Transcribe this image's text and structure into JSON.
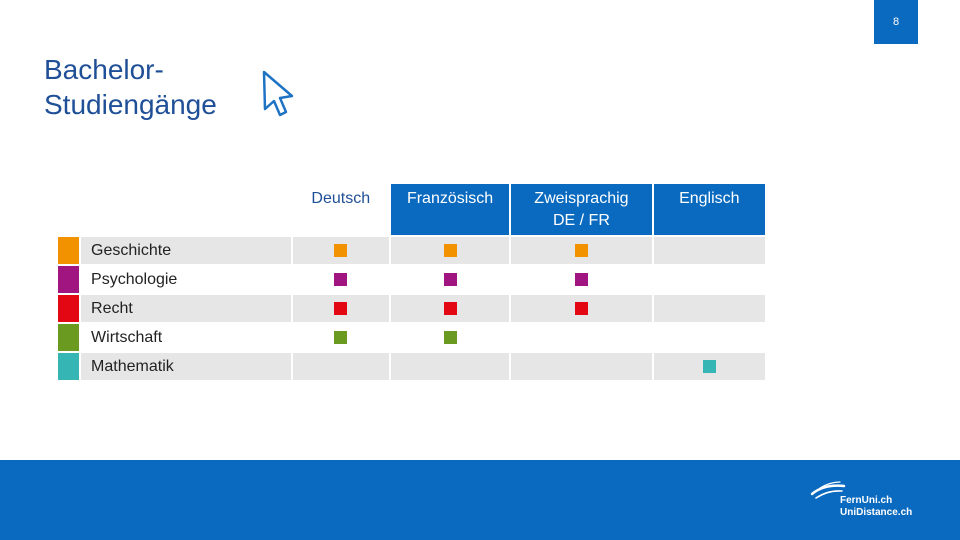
{
  "page_number": "8",
  "title": {
    "line1": "Bachelor-",
    "line2": "Studiengänge"
  },
  "table": {
    "headers": {
      "de": "Deutsch",
      "fr": "Französisch",
      "bi_line1": "Zweisprachig",
      "bi_line2": "DE / FR",
      "en": "Englisch"
    },
    "rows": [
      {
        "label": "Geschichte",
        "color": "#f39200",
        "de": true,
        "fr": true,
        "bi": true,
        "en": false
      },
      {
        "label": "Psychologie",
        "color": "#a0157f",
        "de": true,
        "fr": true,
        "bi": true,
        "en": false
      },
      {
        "label": "Recht",
        "color": "#e30613",
        "de": true,
        "fr": true,
        "bi": true,
        "en": false
      },
      {
        "label": "Wirtschaft",
        "color": "#6a9a1f",
        "de": true,
        "fr": true,
        "bi": false,
        "en": false
      },
      {
        "label": "Mathematik",
        "color": "#35b6b4",
        "de": false,
        "fr": false,
        "bi": false,
        "en": true
      }
    ]
  },
  "logo": {
    "line1": "FernUni.ch",
    "line2": "UniDistance.ch"
  },
  "colors": {
    "brand_blue": "#0a6abf",
    "title_blue": "#1f4f96",
    "row_shade": "#e6e6e6"
  }
}
